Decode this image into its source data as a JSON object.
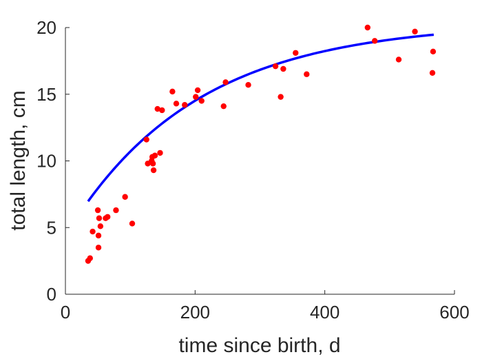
{
  "chart_data": {
    "type": "scatter",
    "title": "",
    "xlabel": "time since birth, d",
    "ylabel": "total length, cm",
    "xlim": [
      0,
      600
    ],
    "ylim": [
      0,
      20
    ],
    "x_ticks": [
      0,
      200,
      400,
      600
    ],
    "y_ticks": [
      0,
      5,
      10,
      15,
      20
    ],
    "grid": false,
    "box": false,
    "colors": {
      "points": "#ff0000",
      "fit": "#0000ff",
      "axis": "#262626"
    },
    "series": [
      {
        "kind": "scatter",
        "points": [
          [
            35,
            2.5
          ],
          [
            38,
            2.7
          ],
          [
            42,
            4.7
          ],
          [
            50,
            6.3
          ],
          [
            51,
            4.4
          ],
          [
            52,
            5.7
          ],
          [
            51,
            3.5
          ],
          [
            54,
            5.1
          ],
          [
            62,
            5.7
          ],
          [
            65,
            5.8
          ],
          [
            78,
            6.3
          ],
          [
            92,
            7.3
          ],
          [
            103,
            5.3
          ],
          [
            125,
            11.6
          ],
          [
            127,
            9.8
          ],
          [
            133,
            10.0
          ],
          [
            134,
            10.3
          ],
          [
            135,
            9.8
          ],
          [
            136,
            9.3
          ],
          [
            138,
            10.4
          ],
          [
            142,
            13.9
          ],
          [
            146,
            10.6
          ],
          [
            149,
            13.8
          ],
          [
            165,
            15.2
          ],
          [
            171,
            14.3
          ],
          [
            184,
            14.2
          ],
          [
            201,
            14.8
          ],
          [
            204,
            15.3
          ],
          [
            210,
            14.5
          ],
          [
            244,
            14.1
          ],
          [
            247,
            15.9
          ],
          [
            282,
            15.7
          ],
          [
            324,
            17.1
          ],
          [
            332,
            14.8
          ],
          [
            336,
            16.9
          ],
          [
            355,
            18.1
          ],
          [
            372,
            16.5
          ],
          [
            466,
            20.0
          ],
          [
            477,
            19.0
          ],
          [
            514,
            17.6
          ],
          [
            539,
            19.7
          ],
          [
            566,
            16.6
          ],
          [
            567,
            18.2
          ]
        ]
      },
      {
        "kind": "line",
        "model": {
          "Linf": 20.4,
          "k": 0.005,
          "x0": 4.4
        },
        "x_range": [
          35,
          568
        ]
      }
    ]
  }
}
